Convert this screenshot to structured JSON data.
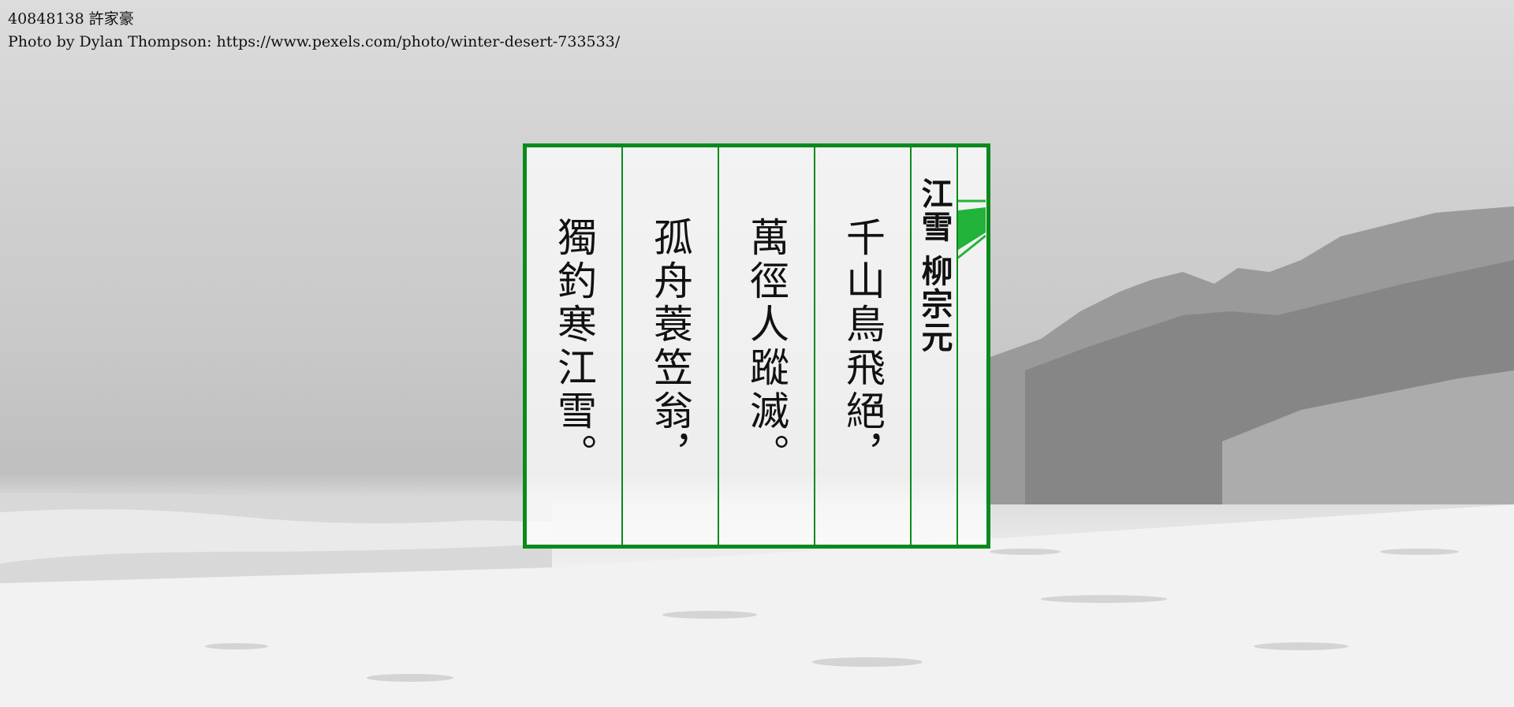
{
  "caption": {
    "author_line": "40848138 許家豪",
    "photo_credit": "Photo by Dylan Thompson: https://www.pexels.com/photo/winter-desert-733533/"
  },
  "poem": {
    "title": "江雪",
    "author": "柳宗元",
    "lines": [
      "千山鳥飛絕，",
      "萬徑人蹤滅。",
      "孤舟蓑笠翁，",
      "獨釣寒江雪。"
    ]
  },
  "colors": {
    "border": "#0a8a1c",
    "accent": "#22b33a"
  }
}
